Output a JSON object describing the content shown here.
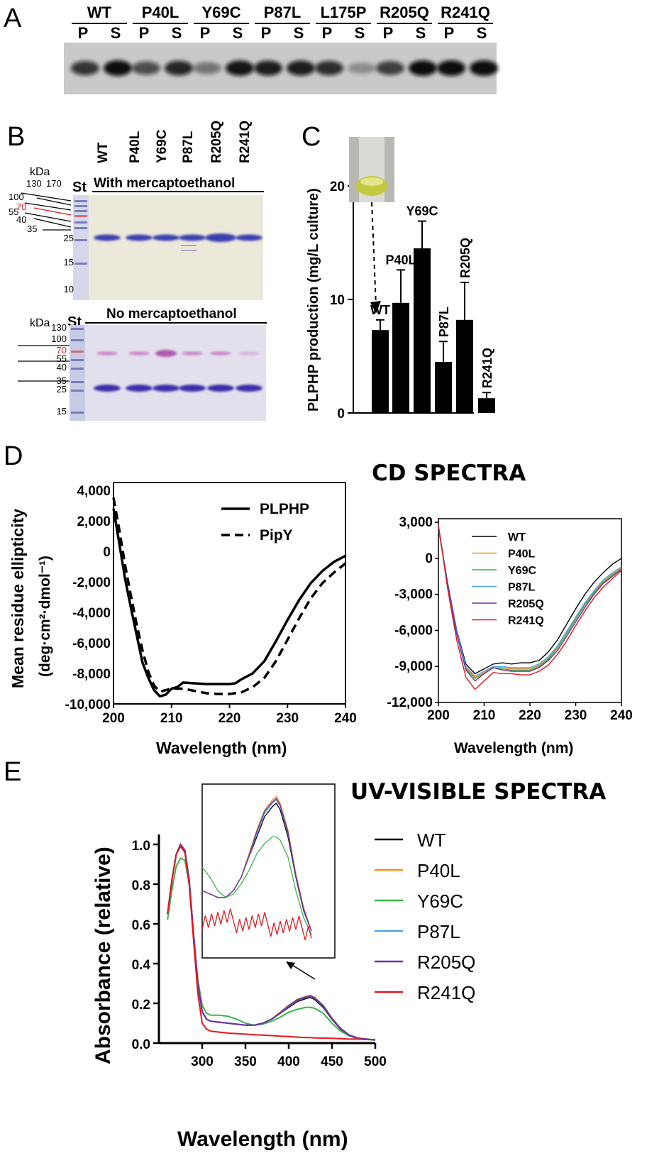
{
  "panels": {
    "A": {
      "letter": "A",
      "lanes": [
        "WT",
        "P40L",
        "Y69C",
        "P87L",
        "L175P",
        "R205Q",
        "R241Q"
      ],
      "sub": [
        "P",
        "S"
      ]
    },
    "B": {
      "letter": "B",
      "lanes": [
        "WT",
        "P40L",
        "Y69C",
        "P87L",
        "R205Q",
        "R241Q"
      ],
      "std_label": "St",
      "kda": "kDa",
      "top_title": "With mercaptoethanol",
      "bottom_title": "No mercaptoethanol",
      "top_markers": [
        "130",
        "170",
        "100",
        "70",
        "55",
        "40",
        "35",
        "25",
        "15",
        "10"
      ],
      "bottom_markers": [
        "130",
        "100",
        "70",
        "55",
        "40",
        "35",
        "25",
        "15"
      ],
      "marker_highlight_color": "#e8141b"
    },
    "C": {
      "letter": "C",
      "ylabel": "PLPHP production (mg/L culture)"
    },
    "D": {
      "letter": "D",
      "title": "CD SPECTRA",
      "left_ylabel_line1": "Mean residue ellipticity",
      "left_ylabel_line2": "(deg·cm²·dmol⁻¹)",
      "xlabel": "Wavelength (nm)"
    },
    "E": {
      "letter": "E",
      "title": "UV-VISIBLE SPECTRA",
      "ylabel": "Absorbance (relative)",
      "xlabel": "Wavelength (nm)"
    }
  },
  "chart_data": [
    {
      "panel": "C",
      "type": "bar",
      "categories": [
        "WT",
        "P40L",
        "Y69C",
        "P87L",
        "R205Q",
        "R241Q"
      ],
      "values": [
        7.3,
        9.7,
        14.5,
        4.5,
        8.2,
        1.3
      ],
      "errors": [
        0.9,
        2.9,
        2.4,
        1.8,
        3.3,
        0.5
      ],
      "ylabel": "PLPHP production (mg/L culture)",
      "ylim": [
        0,
        20
      ],
      "yticks": [
        0,
        10,
        20
      ],
      "bar_color": "#000000"
    },
    {
      "panel": "D-left",
      "type": "line",
      "xlabel": "Wavelength (nm)",
      "ylabel": "Mean residue ellipticity (deg·cm²·dmol⁻¹)",
      "xlim": [
        200,
        240
      ],
      "ylim": [
        -10000,
        4500
      ],
      "xticks": [
        200,
        210,
        220,
        230,
        240
      ],
      "yticks": [
        4000,
        2000,
        0,
        -2000,
        -4000,
        -6000,
        -8000,
        -10000
      ],
      "ytick_labels": [
        "4,000",
        "2,000",
        "0",
        "-2,000",
        "-4,000",
        "-6,000",
        "-8,000",
        "-10,000"
      ],
      "legend_position": "top-right",
      "series": [
        {
          "name": "PLPHP",
          "style": "solid",
          "x": [
            200,
            201,
            202,
            203,
            204,
            205,
            206,
            207,
            208,
            209,
            210,
            211,
            212,
            214,
            216,
            218,
            220,
            221,
            222,
            224,
            226,
            228,
            230,
            232,
            234,
            236,
            238,
            240
          ],
          "y": [
            2800,
            500,
            -1800,
            -3700,
            -5500,
            -7300,
            -8300,
            -9100,
            -9500,
            -9400,
            -9000,
            -8900,
            -8600,
            -8650,
            -8700,
            -8700,
            -8700,
            -8650,
            -8400,
            -8000,
            -7200,
            -5900,
            -4500,
            -3200,
            -2100,
            -1300,
            -700,
            -300
          ]
        },
        {
          "name": "PipY",
          "style": "dashed",
          "x": [
            200,
            201,
            202,
            203,
            204,
            205,
            206,
            207,
            208,
            209,
            210,
            212,
            214,
            216,
            218,
            220,
            222,
            224,
            226,
            228,
            230,
            232,
            234,
            236,
            238,
            240
          ],
          "y": [
            3500,
            1400,
            -900,
            -2900,
            -4800,
            -6500,
            -7900,
            -8800,
            -9200,
            -9100,
            -9000,
            -9000,
            -9150,
            -9300,
            -9350,
            -9350,
            -9250,
            -8900,
            -8300,
            -7200,
            -5800,
            -4400,
            -3100,
            -2100,
            -1400,
            -800
          ]
        }
      ]
    },
    {
      "panel": "D-right",
      "type": "line",
      "xlabel": "Wavelength (nm)",
      "xlim": [
        200,
        240
      ],
      "ylim": [
        -12000,
        3300
      ],
      "xticks": [
        200,
        210,
        220,
        230,
        240
      ],
      "yticks": [
        3000,
        0,
        -3000,
        -6000,
        -9000,
        -12000
      ],
      "ytick_labels": [
        "3,000",
        "0",
        "-3,000",
        "-6,000",
        "-9,000",
        "-12,000"
      ],
      "legend_position": "top-right",
      "x": [
        200,
        202,
        204,
        206,
        208,
        210,
        212,
        214,
        216,
        218,
        220,
        222,
        224,
        226,
        228,
        230,
        232,
        234,
        236,
        238,
        240
      ],
      "series": [
        {
          "name": "WT",
          "color": "#000000",
          "y": [
            2500,
            -2000,
            -6000,
            -8800,
            -9600,
            -9200,
            -8800,
            -8700,
            -8800,
            -8700,
            -8700,
            -8500,
            -7800,
            -6800,
            -5500,
            -4200,
            -3000,
            -2000,
            -1200,
            -500,
            0
          ]
        },
        {
          "name": "P40L",
          "color": "#f5921e",
          "y": [
            2600,
            -2200,
            -6200,
            -9100,
            -9900,
            -9500,
            -9000,
            -9100,
            -9200,
            -9200,
            -9200,
            -8900,
            -8300,
            -7400,
            -6200,
            -5000,
            -3800,
            -2800,
            -1900,
            -1300,
            -800
          ]
        },
        {
          "name": "Y69C",
          "color": "#3ab54a",
          "y": [
            2700,
            -2300,
            -6300,
            -9200,
            -10000,
            -9600,
            -9100,
            -9200,
            -9300,
            -9300,
            -9300,
            -9000,
            -8400,
            -7500,
            -6300,
            -5100,
            -3900,
            -2900,
            -2000,
            -1400,
            -900
          ]
        },
        {
          "name": "P87L",
          "color": "#4aa6e8",
          "y": [
            2600,
            -2100,
            -6100,
            -9000,
            -9800,
            -9400,
            -9000,
            -9000,
            -9100,
            -9100,
            -9100,
            -8800,
            -8200,
            -7300,
            -6100,
            -4900,
            -3700,
            -2700,
            -1800,
            -1200,
            -700
          ]
        },
        {
          "name": "R205Q",
          "color": "#7030a0",
          "y": [
            2700,
            -2200,
            -6300,
            -9300,
            -10200,
            -9600,
            -9100,
            -9300,
            -9400,
            -9400,
            -9400,
            -9100,
            -8500,
            -7700,
            -6500,
            -5300,
            -4100,
            -3000,
            -2100,
            -1500,
            -900
          ]
        },
        {
          "name": "R241Q",
          "color": "#e8141b",
          "y": [
            2800,
            -2500,
            -6800,
            -9900,
            -10900,
            -10200,
            -9500,
            -9600,
            -9600,
            -9700,
            -9700,
            -9400,
            -8900,
            -8000,
            -6900,
            -5600,
            -4400,
            -3300,
            -2400,
            -1700,
            -1000
          ]
        }
      ]
    },
    {
      "panel": "E",
      "type": "line",
      "xlabel": "Wavelength (nm)",
      "ylabel": "Absorbance (relative)",
      "xlim": [
        250,
        500
      ],
      "ylim": [
        0,
        1.05
      ],
      "xticks": [
        300,
        350,
        400,
        450,
        500
      ],
      "yticks": [
        0.0,
        0.2,
        0.4,
        0.6,
        0.8,
        1.0
      ],
      "ytick_labels": [
        "0.0",
        "0.2",
        "0.4",
        "0.6",
        "0.8",
        "1.0"
      ],
      "legend_position": "right",
      "x": [
        260,
        265,
        270,
        275,
        280,
        285,
        290,
        295,
        300,
        305,
        310,
        320,
        330,
        340,
        350,
        360,
        370,
        380,
        390,
        400,
        410,
        420,
        425,
        430,
        440,
        450,
        460,
        470,
        480,
        490,
        500
      ],
      "series": [
        {
          "name": "WT",
          "color": "#000000",
          "y": [
            0.65,
            0.82,
            0.95,
            1.0,
            0.97,
            0.82,
            0.55,
            0.3,
            0.16,
            0.12,
            0.11,
            0.105,
            0.1,
            0.095,
            0.09,
            0.09,
            0.1,
            0.12,
            0.15,
            0.18,
            0.21,
            0.225,
            0.23,
            0.22,
            0.18,
            0.12,
            0.07,
            0.04,
            0.025,
            0.02,
            0.015
          ]
        },
        {
          "name": "P40L",
          "color": "#f5921e",
          "y": [
            0.65,
            0.82,
            0.95,
            1.0,
            0.97,
            0.82,
            0.55,
            0.3,
            0.16,
            0.12,
            0.11,
            0.105,
            0.1,
            0.095,
            0.09,
            0.09,
            0.1,
            0.12,
            0.155,
            0.19,
            0.22,
            0.235,
            0.24,
            0.23,
            0.19,
            0.125,
            0.075,
            0.04,
            0.025,
            0.02,
            0.015
          ]
        },
        {
          "name": "Y69C",
          "color": "#3ab54a",
          "y": [
            0.62,
            0.77,
            0.89,
            0.93,
            0.92,
            0.8,
            0.55,
            0.32,
            0.19,
            0.15,
            0.14,
            0.14,
            0.135,
            0.12,
            0.1,
            0.09,
            0.095,
            0.11,
            0.13,
            0.155,
            0.17,
            0.18,
            0.18,
            0.175,
            0.15,
            0.1,
            0.06,
            0.035,
            0.022,
            0.018,
            0.015
          ]
        },
        {
          "name": "P87L",
          "color": "#4aa6e8",
          "y": [
            0.65,
            0.82,
            0.95,
            1.0,
            0.97,
            0.82,
            0.55,
            0.3,
            0.16,
            0.12,
            0.11,
            0.105,
            0.1,
            0.095,
            0.09,
            0.09,
            0.1,
            0.12,
            0.15,
            0.185,
            0.215,
            0.23,
            0.235,
            0.225,
            0.185,
            0.122,
            0.072,
            0.04,
            0.025,
            0.02,
            0.015
          ]
        },
        {
          "name": "R205Q",
          "color": "#7030a0",
          "y": [
            0.65,
            0.82,
            0.95,
            1.0,
            0.97,
            0.82,
            0.55,
            0.3,
            0.16,
            0.12,
            0.11,
            0.105,
            0.1,
            0.095,
            0.09,
            0.09,
            0.1,
            0.12,
            0.152,
            0.188,
            0.218,
            0.232,
            0.237,
            0.227,
            0.187,
            0.123,
            0.073,
            0.04,
            0.025,
            0.02,
            0.015
          ]
        },
        {
          "name": "R241Q",
          "color": "#e8141b",
          "y": [
            0.65,
            0.82,
            0.95,
            0.99,
            0.96,
            0.8,
            0.52,
            0.25,
            0.1,
            0.07,
            0.06,
            0.055,
            0.05,
            0.048,
            0.045,
            0.042,
            0.04,
            0.038,
            0.035,
            0.033,
            0.03,
            0.028,
            0.028,
            0.026,
            0.025,
            0.024,
            0.022,
            0.02,
            0.02,
            0.018,
            0.018
          ]
        }
      ]
    }
  ]
}
